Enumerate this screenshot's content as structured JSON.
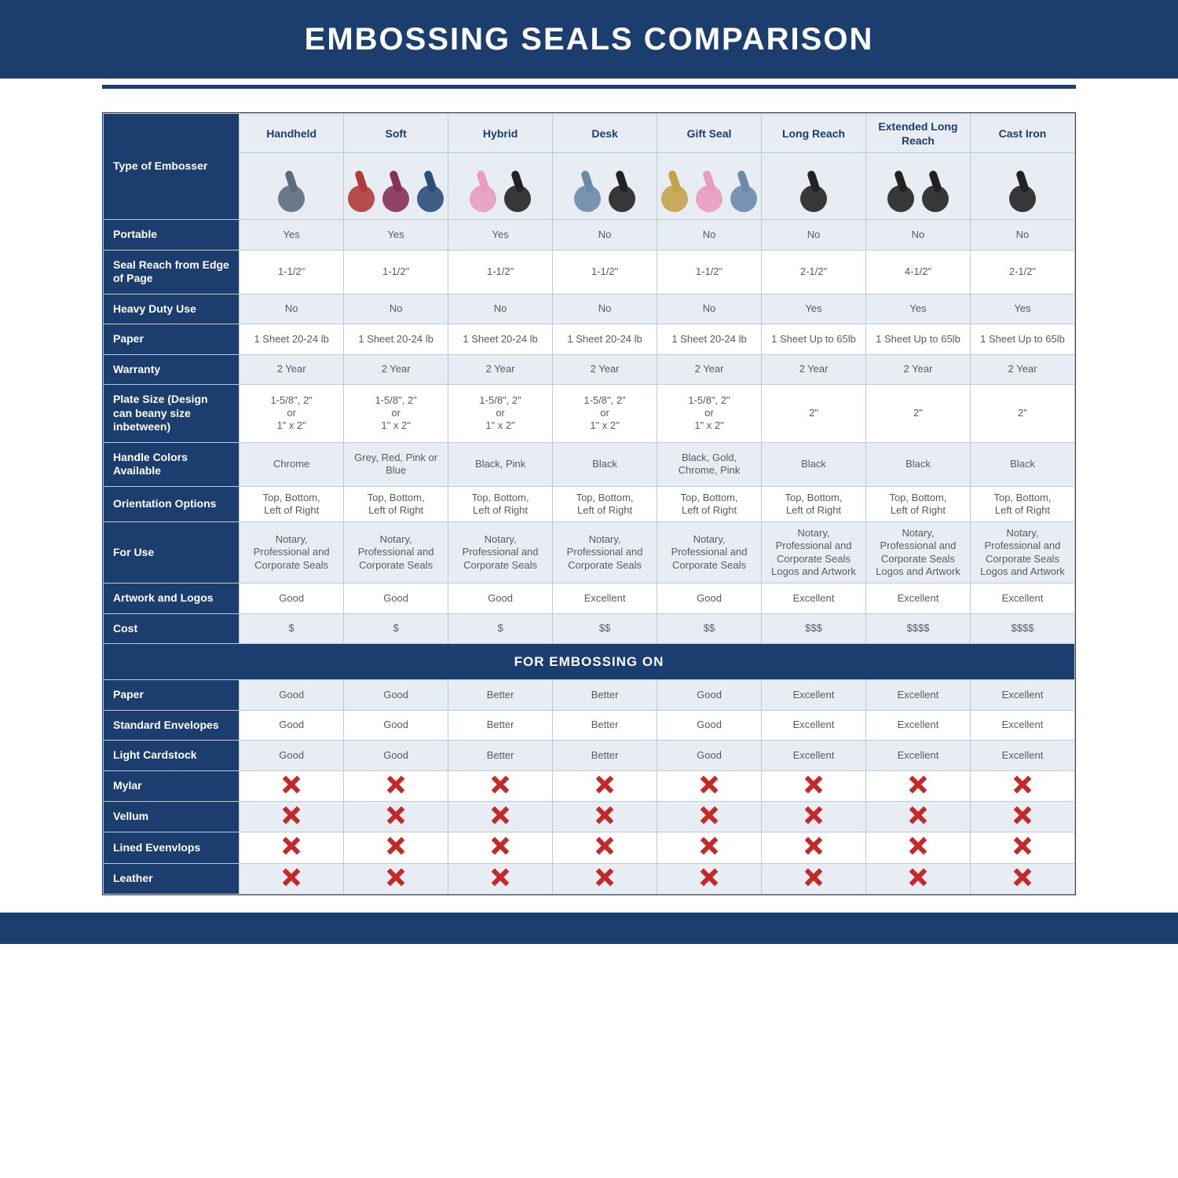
{
  "page": {
    "title": "EMBOSSING SEALS COMPARISON",
    "section_title": "FOR EMBOSSING ON",
    "colors": {
      "header_bg": "#1c3e6e",
      "header_text": "#ffffff",
      "divider": "#1c3e6e",
      "rowhead_bg": "#1c3e6e",
      "rowhead_text": "#ffffff",
      "cell_alt_bg": "#e7edf3",
      "cell_bg": "#ffffff",
      "cell_text": "#5b5b5b",
      "border": "#bfcad8",
      "x_mark": "#c62828"
    },
    "title_fontsize": 40
  },
  "table": {
    "type": "table",
    "row_label_col_width": "14%",
    "data_col_width": "10.75%",
    "header_label": "Type of Embosser",
    "columns": [
      {
        "label": "Handheld",
        "thumb_colors": [
          "#5c6b7e"
        ]
      },
      {
        "label": "Soft",
        "thumb_colors": [
          "#b03a3a",
          "#8a2f58",
          "#2d4d7a"
        ]
      },
      {
        "label": "Hybrid",
        "thumb_colors": [
          "#e89cc0",
          "#222222"
        ]
      },
      {
        "label": "Desk",
        "thumb_colors": [
          "#6b8aa8",
          "#222222"
        ]
      },
      {
        "label": "Gift Seal",
        "thumb_colors": [
          "#c4a24a",
          "#e89cc0",
          "#6b8aa8"
        ]
      },
      {
        "label": "Long Reach",
        "thumb_colors": [
          "#222222"
        ]
      },
      {
        "label": "Extended Long Reach",
        "thumb_colors": [
          "#222222",
          "#222222"
        ]
      },
      {
        "label": "Cast Iron",
        "thumb_colors": [
          "#222222"
        ]
      }
    ],
    "rows": [
      {
        "label": "Portable",
        "cells": [
          "Yes",
          "Yes",
          "Yes",
          "No",
          "No",
          "No",
          "No",
          "No"
        ]
      },
      {
        "label": "Seal Reach from Edge of Page",
        "cells": [
          "1-1/2\"",
          "1-1/2\"",
          "1-1/2\"",
          "1-1/2\"",
          "1-1/2\"",
          "2-1/2\"",
          "4-1/2\"",
          "2-1/2\""
        ]
      },
      {
        "label": "Heavy Duty Use",
        "cells": [
          "No",
          "No",
          "No",
          "No",
          "No",
          "Yes",
          "Yes",
          "Yes"
        ]
      },
      {
        "label": "Paper",
        "cells": [
          "1 Sheet 20-24 lb",
          "1 Sheet 20-24 lb",
          "1 Sheet 20-24 lb",
          "1 Sheet 20-24 lb",
          "1 Sheet 20-24 lb",
          "1 Sheet Up to 65lb",
          "1 Sheet Up to 65lb",
          "1 Sheet Up to 65lb"
        ]
      },
      {
        "label": "Warranty",
        "cells": [
          "2 Year",
          "2 Year",
          "2 Year",
          "2 Year",
          "2 Year",
          "2 Year",
          "2 Year",
          "2 Year"
        ]
      },
      {
        "label": "Plate Size (Design can beany size inbetween)",
        "cells": [
          "1-5/8\", 2\"\nor\n1\" x 2\"",
          "1-5/8\", 2\"\nor\n1\" x 2\"",
          "1-5/8\", 2\"\nor\n1\" x 2\"",
          "1-5/8\", 2\"\nor\n1\" x 2\"",
          "1-5/8\", 2\"\nor\n1\" x 2\"",
          "2\"",
          "2\"",
          "2\""
        ]
      },
      {
        "label": "Handle Colors Available",
        "cells": [
          "Chrome",
          "Grey, Red, Pink or Blue",
          "Black, Pink",
          "Black",
          "Black, Gold, Chrome, Pink",
          "Black",
          "Black",
          "Black"
        ]
      },
      {
        "label": "Orientation Options",
        "cells": [
          "Top, Bottom,\nLeft of Right",
          "Top, Bottom,\nLeft of Right",
          "Top, Bottom,\nLeft of Right",
          "Top, Bottom,\nLeft of Right",
          "Top, Bottom,\nLeft of Right",
          "Top, Bottom,\nLeft of Right",
          "Top, Bottom,\nLeft of Right",
          "Top, Bottom,\nLeft of Right"
        ]
      },
      {
        "label": "For Use",
        "cells": [
          "Notary, Professional and Corporate Seals",
          "Notary, Professional and Corporate Seals",
          "Notary, Professional and Corporate Seals",
          "Notary, Professional and Corporate Seals",
          "Notary, Professional and Corporate Seals",
          "Notary, Professional and Corporate Seals Logos and Artwork",
          "Notary, Professional and Corporate Seals Logos and Artwork",
          "Notary, Professional and Corporate Seals Logos and Artwork"
        ]
      },
      {
        "label": "Artwork and Logos",
        "cells": [
          "Good",
          "Good",
          "Good",
          "Excellent",
          "Good",
          "Excellent",
          "Excellent",
          "Excellent"
        ]
      },
      {
        "label": "Cost",
        "cells": [
          "$",
          "$",
          "$",
          "$$",
          "$$",
          "$$$",
          "$$$$",
          "$$$$"
        ]
      }
    ],
    "material_rows": [
      {
        "label": "Paper",
        "cells": [
          "Good",
          "Good",
          "Better",
          "Better",
          "Good",
          "Excellent",
          "Excellent",
          "Excellent"
        ]
      },
      {
        "label": "Standard Envelopes",
        "cells": [
          "Good",
          "Good",
          "Better",
          "Better",
          "Good",
          "Excellent",
          "Excellent",
          "Excellent"
        ]
      },
      {
        "label": "Light Cardstock",
        "cells": [
          "Good",
          "Good",
          "Better",
          "Better",
          "Good",
          "Excellent",
          "Excellent",
          "Excellent"
        ]
      },
      {
        "label": "Mylar",
        "cells": [
          "X",
          "X",
          "X",
          "X",
          "X",
          "X",
          "X",
          "X"
        ]
      },
      {
        "label": "Vellum",
        "cells": [
          "X",
          "X",
          "X",
          "X",
          "X",
          "X",
          "X",
          "X"
        ]
      },
      {
        "label": "Lined Evenvlops",
        "cells": [
          "X",
          "X",
          "X",
          "X",
          "X",
          "X",
          "X",
          "X"
        ]
      },
      {
        "label": "Leather",
        "cells": [
          "X",
          "X",
          "X",
          "X",
          "X",
          "X",
          "X",
          "X"
        ]
      }
    ]
  }
}
